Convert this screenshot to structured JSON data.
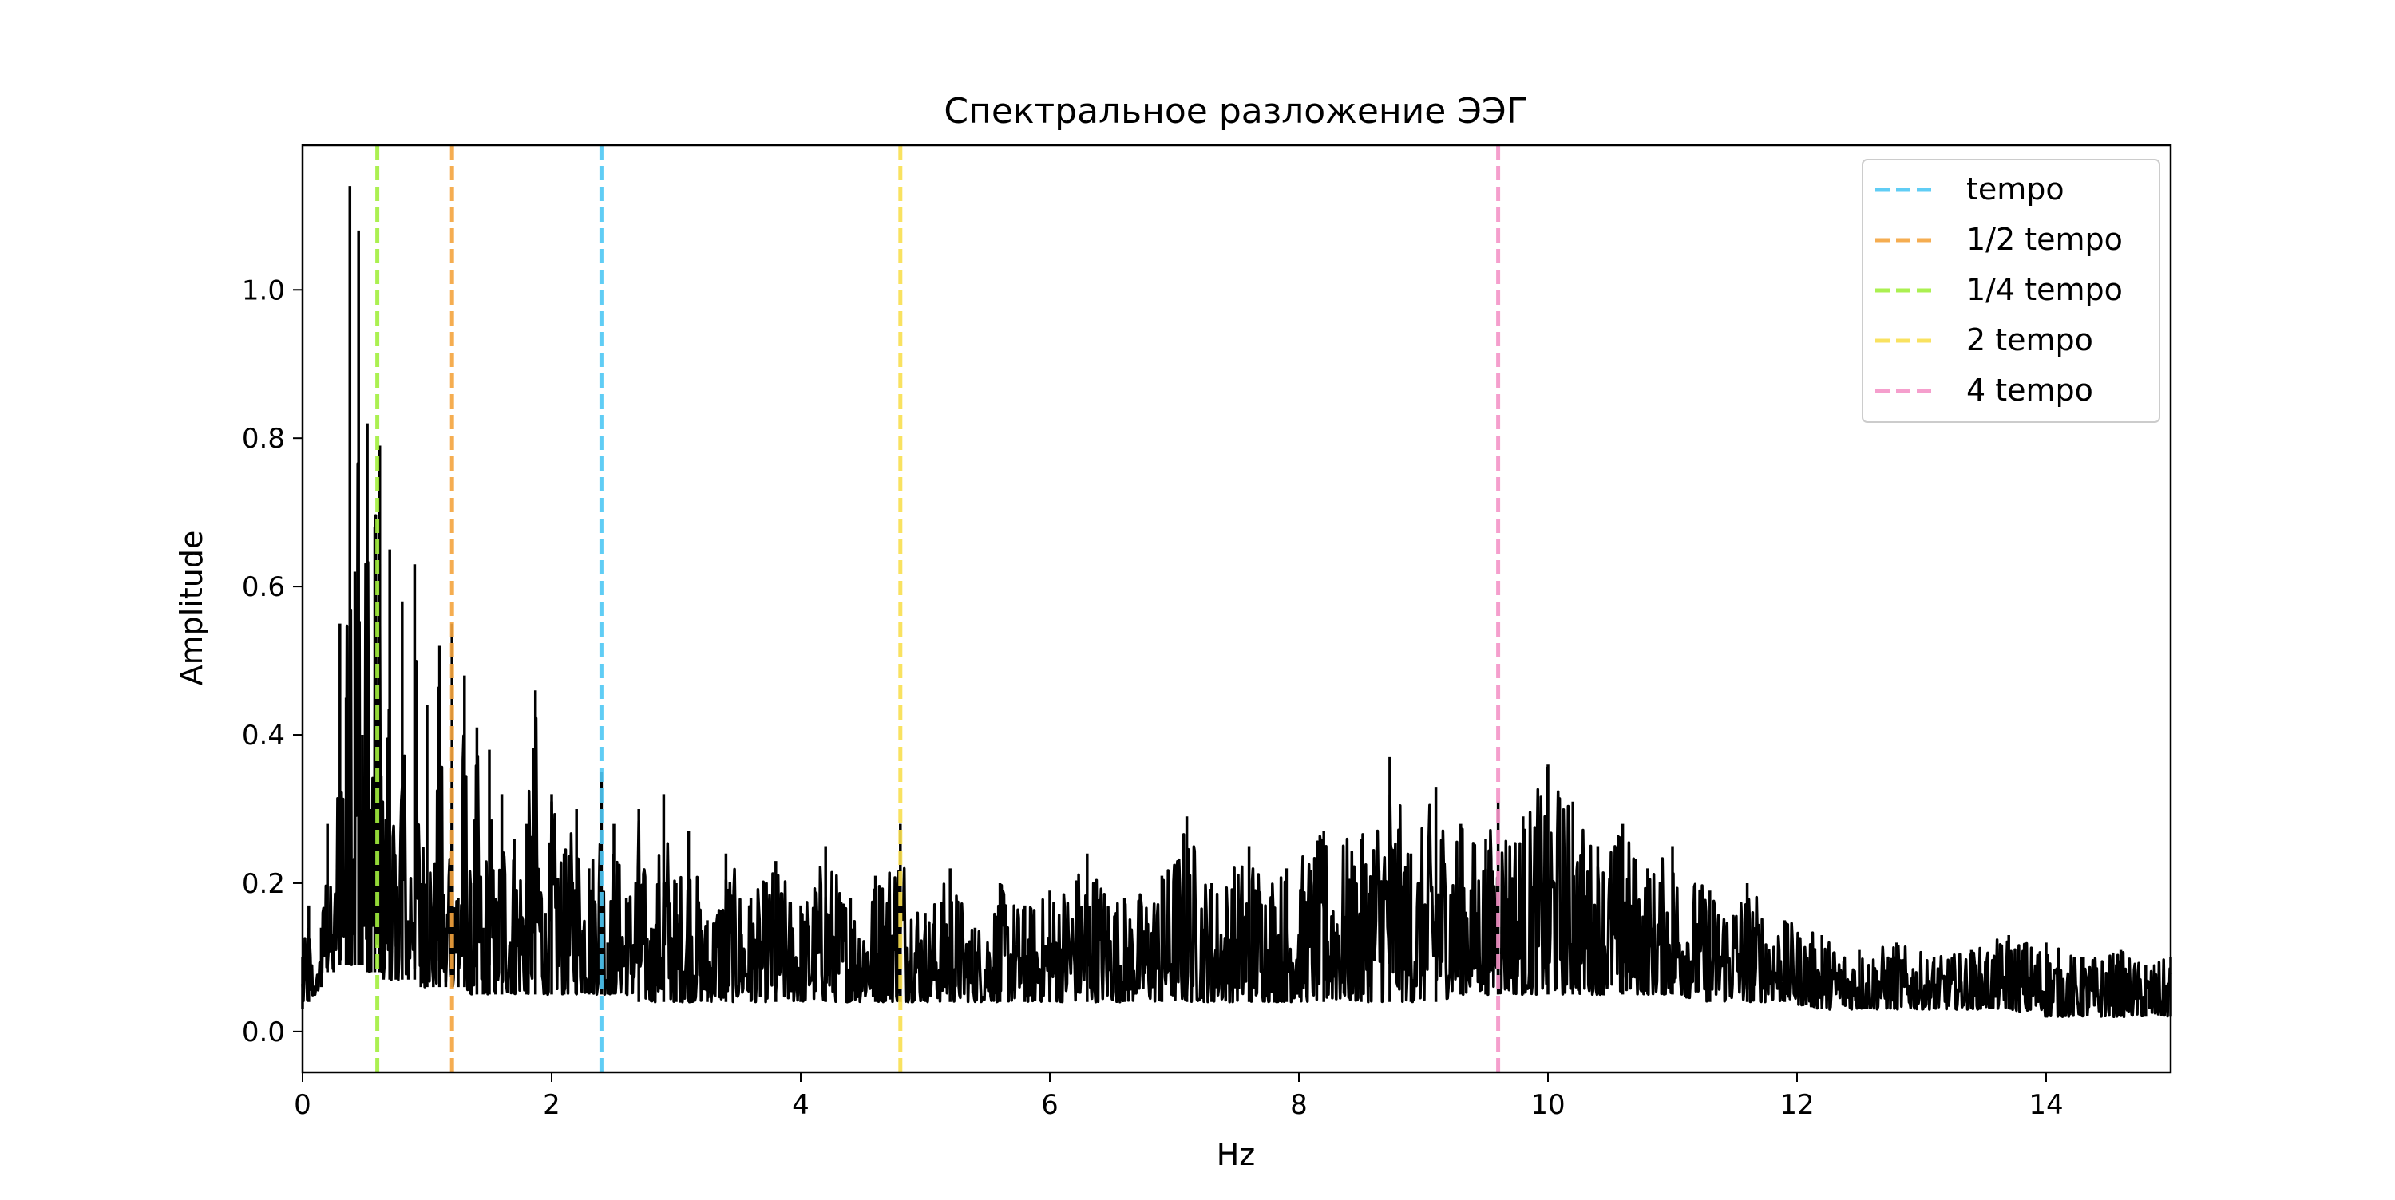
{
  "chart_data": {
    "type": "line",
    "title": "Спектральное разложение ЭЭГ",
    "xlabel": "Hz",
    "ylabel": "Amplitude",
    "xlim": [
      0,
      15
    ],
    "ylim": [
      -0.055,
      1.195
    ],
    "xticks": [
      "0",
      "2",
      "4",
      "6",
      "8",
      "10",
      "12",
      "14"
    ],
    "yticks": [
      "0.0",
      "0.2",
      "0.4",
      "0.6",
      "0.8",
      "1.0"
    ],
    "grid": false,
    "legend_position": "top-right",
    "series": [
      {
        "color": "#000000",
        "x": [
          0,
          0.05,
          0.1,
          0.15,
          0.2,
          0.25,
          0.3,
          0.35,
          0.38,
          0.42,
          0.45,
          0.48,
          0.52,
          0.55,
          0.58,
          0.62,
          0.65,
          0.7,
          0.75,
          0.8,
          0.85,
          0.9,
          0.95,
          1.0,
          1.05,
          1.1,
          1.15,
          1.2,
          1.25,
          1.3,
          1.35,
          1.4,
          1.45,
          1.5,
          1.55,
          1.6,
          1.7,
          1.8,
          1.87,
          1.95,
          2.0,
          2.1,
          2.2,
          2.3,
          2.4,
          2.45,
          2.5,
          2.6,
          2.7,
          2.8,
          2.9,
          3.0,
          3.1,
          3.25,
          3.4,
          3.6,
          3.8,
          4.0,
          4.2,
          4.4,
          4.6,
          4.8,
          5.0,
          5.2,
          5.4,
          5.6,
          5.8,
          6.0,
          6.3,
          6.6,
          6.9,
          7.1,
          7.3,
          7.6,
          7.9,
          8.2,
          8.5,
          8.73,
          8.9,
          9.1,
          9.3,
          9.5,
          9.6,
          9.8,
          10.0,
          10.2,
          10.4,
          10.6,
          10.8,
          11.0,
          11.3,
          11.6,
          11.9,
          12.2,
          12.5,
          12.8,
          13.1,
          13.4,
          13.7,
          14.0,
          14.3,
          14.6,
          14.8,
          15.0
        ],
        "y": [
          0.1,
          0.17,
          0.05,
          0.14,
          0.28,
          0.12,
          0.55,
          0.45,
          1.14,
          0.62,
          1.08,
          0.4,
          0.82,
          0.3,
          0.68,
          0.79,
          0.22,
          0.65,
          0.18,
          0.58,
          0.15,
          0.63,
          0.2,
          0.44,
          0.16,
          0.52,
          0.12,
          0.55,
          0.18,
          0.48,
          0.2,
          0.41,
          0.14,
          0.38,
          0.18,
          0.32,
          0.26,
          0.28,
          0.46,
          0.16,
          0.32,
          0.24,
          0.3,
          0.22,
          0.35,
          0.12,
          0.28,
          0.18,
          0.3,
          0.14,
          0.32,
          0.2,
          0.27,
          0.15,
          0.24,
          0.18,
          0.23,
          0.17,
          0.25,
          0.18,
          0.21,
          0.28,
          0.16,
          0.22,
          0.14,
          0.2,
          0.17,
          0.19,
          0.24,
          0.18,
          0.21,
          0.29,
          0.2,
          0.25,
          0.22,
          0.27,
          0.26,
          0.37,
          0.24,
          0.33,
          0.28,
          0.26,
          0.31,
          0.29,
          0.36,
          0.31,
          0.25,
          0.28,
          0.22,
          0.25,
          0.19,
          0.2,
          0.15,
          0.13,
          0.11,
          0.12,
          0.1,
          0.11,
          0.13,
          0.12,
          0.1,
          0.11,
          0.09,
          0.1
        ],
        "floor": [
          0.03,
          0.04,
          0.05,
          0.06,
          0.08,
          0.08,
          0.09,
          0.09,
          0.09,
          0.09,
          0.09,
          0.09,
          0.08,
          0.08,
          0.08,
          0.08,
          0.07,
          0.07,
          0.07,
          0.07,
          0.07,
          0.07,
          0.06,
          0.06,
          0.06,
          0.06,
          0.06,
          0.06,
          0.06,
          0.06,
          0.05,
          0.05,
          0.05,
          0.05,
          0.05,
          0.05,
          0.05,
          0.05,
          0.05,
          0.05,
          0.05,
          0.05,
          0.05,
          0.05,
          0.05,
          0.05,
          0.05,
          0.05,
          0.04,
          0.04,
          0.04,
          0.04,
          0.04,
          0.04,
          0.04,
          0.04,
          0.04,
          0.04,
          0.04,
          0.04,
          0.04,
          0.04,
          0.04,
          0.04,
          0.04,
          0.04,
          0.04,
          0.04,
          0.04,
          0.04,
          0.04,
          0.04,
          0.04,
          0.04,
          0.04,
          0.04,
          0.04,
          0.04,
          0.04,
          0.04,
          0.05,
          0.05,
          0.05,
          0.05,
          0.05,
          0.05,
          0.05,
          0.05,
          0.05,
          0.05,
          0.04,
          0.04,
          0.04,
          0.03,
          0.03,
          0.03,
          0.03,
          0.03,
          0.03,
          0.02,
          0.02,
          0.02,
          0.02,
          0.02
        ]
      }
    ],
    "markers": [
      {
        "name": "tempo",
        "x": 2.4,
        "color": "#4FC8F5"
      },
      {
        "name": "1/2 tempo",
        "x": 1.2,
        "color": "#F5A53F"
      },
      {
        "name": "1/4 tempo",
        "x": 0.6,
        "color": "#A3EF3F"
      },
      {
        "name": "2 tempo",
        "x": 4.8,
        "color": "#F9DF4F"
      },
      {
        "name": "4 tempo",
        "x": 9.6,
        "color": "#F595C8"
      }
    ]
  }
}
